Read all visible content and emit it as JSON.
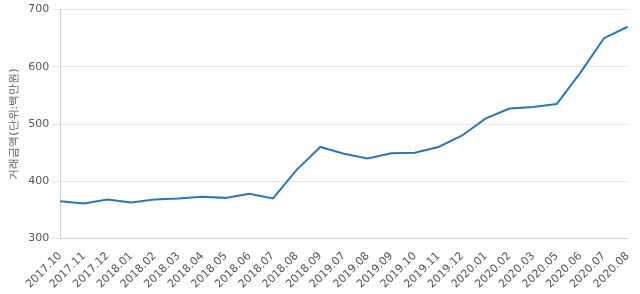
{
  "chart_data": {
    "type": "line",
    "y_label": "거래금액(단위:백만원)",
    "categories": [
      "2017.10",
      "2017.11",
      "2017.12",
      "2018.01",
      "2018.02",
      "2018.03",
      "2018.04",
      "2018.05",
      "2018.06",
      "2018.07",
      "2018.08",
      "2018.09",
      "2019.07",
      "2019.08",
      "2019.09",
      "2019.10",
      "2019.11",
      "2019.12",
      "2020.01",
      "2020.02",
      "2020.03",
      "2020.05",
      "2020.06",
      "2020.07",
      "2020.08"
    ],
    "values": [
      365,
      361,
      368,
      363,
      368,
      370,
      373,
      371,
      378,
      370,
      420,
      460,
      448,
      440,
      449,
      450,
      460,
      480,
      510,
      527,
      530,
      535,
      590,
      650,
      670
    ],
    "color": "#2878b8",
    "ylim": [
      300,
      700
    ],
    "yticks": [
      300,
      400,
      500,
      600,
      700
    ],
    "grid": true
  }
}
